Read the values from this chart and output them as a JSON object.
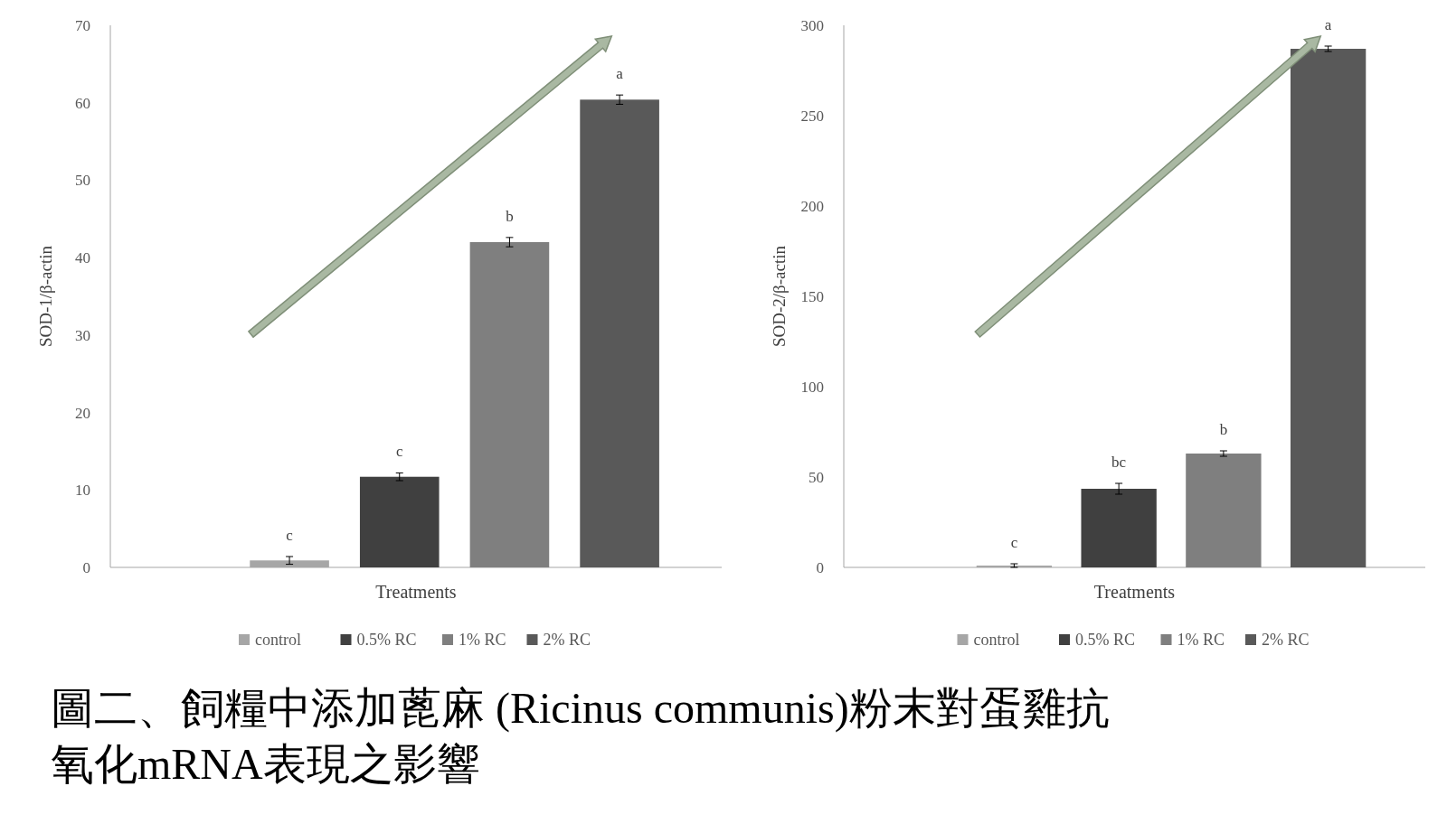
{
  "chart_data": [
    {
      "type": "bar",
      "xlabel": "Treatments",
      "ylabel": "SOD-1/β-actin",
      "categories": [
        null
      ],
      "ylim": [
        0,
        70
      ],
      "yticks": [
        0,
        10,
        20,
        30,
        40,
        50,
        60,
        70
      ],
      "grid": false,
      "legend": "bottom",
      "tick_labels": "y",
      "series": [
        {
          "name": "control",
          "color": "#a6a6a6",
          "values": [
            0.9
          ],
          "errors": [
            0.5
          ]
        },
        {
          "name": "0.5% RC",
          "color": "#404040",
          "values": [
            11.7
          ],
          "errors": [
            0.5
          ]
        },
        {
          "name": "1% RC",
          "color": "#7f7f7f",
          "values": [
            42
          ],
          "errors": [
            0.6
          ]
        },
        {
          "name": "2% RC",
          "color": "#595959",
          "values": [
            60.4
          ],
          "errors": [
            0.6
          ]
        }
      ],
      "annotations": [
        {
          "text": "c",
          "y": 1.4
        },
        {
          "text": "c",
          "y": 12.2
        },
        {
          "text": "b",
          "y": 42.6
        },
        {
          "text": "a",
          "y": 61
        },
        "圖二、飼糧中添加蓖麻 (Ricinus communis)粉末對蛋雞抗氧化mRNA表現之影響"
      ]
    },
    {
      "type": "bar",
      "xlabel": "Treatments",
      "ylabel": "SOD-2/β-actin",
      "categories": [
        null
      ],
      "ylim": [
        0,
        300
      ],
      "yticks": [
        0,
        50,
        100,
        150,
        200,
        250,
        300
      ],
      "grid": false,
      "legend": "bottom",
      "tick_labels": "y",
      "series": [
        {
          "name": "control",
          "color": "#a6a6a6",
          "values": [
            1
          ],
          "errors": [
            1
          ]
        },
        {
          "name": "0.5% RC",
          "color": "#404040",
          "values": [
            43.5
          ],
          "errors": [
            3
          ]
        },
        {
          "name": "1% RC",
          "color": "#7f7f7f",
          "values": [
            63
          ],
          "errors": [
            1.5
          ]
        },
        {
          "name": "2% RC",
          "color": "#595959",
          "values": [
            287
          ],
          "errors": [
            1.5
          ]
        }
      ],
      "annotations": [
        {
          "text": "c",
          "y": 2
        },
        {
          "text": "bc",
          "y": 46.5
        },
        {
          "text": "b",
          "y": 64.5
        },
        {
          "text": "a",
          "y": 288.5
        }
      ]
    }
  ]
}
